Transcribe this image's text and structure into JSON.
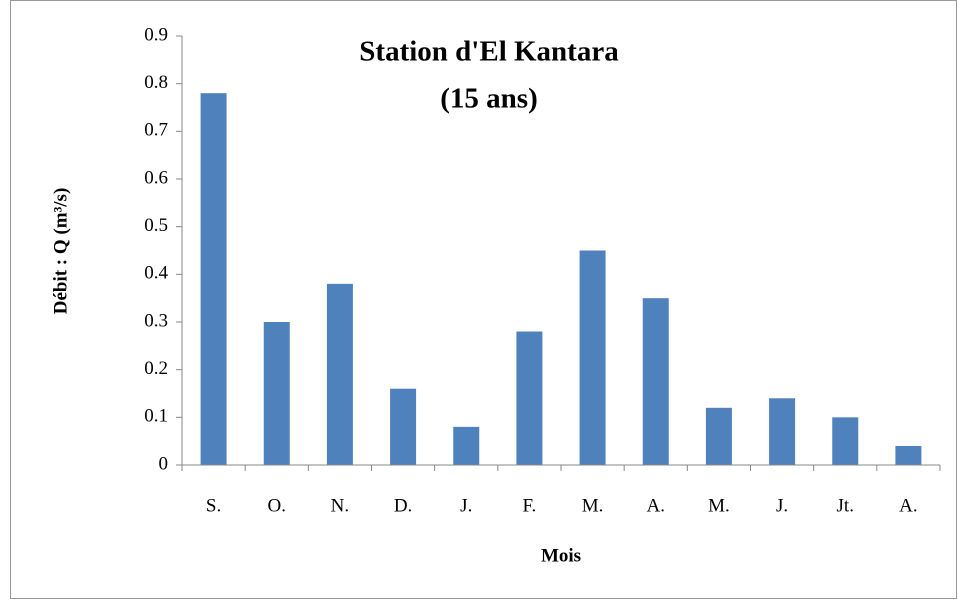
{
  "chart_data": {
    "type": "bar",
    "title": [
      "Station d'El Kantara",
      "(15 ans)"
    ],
    "x_label": "Mois",
    "y_label": "Débit : Q (m³/s)",
    "categories": [
      "S.",
      "O.",
      "N.",
      "D.",
      "J.",
      "F.",
      "M.",
      "A.",
      "M.",
      "J.",
      "Jt.",
      "A."
    ],
    "values": [
      0.78,
      0.3,
      0.38,
      0.16,
      0.08,
      0.28,
      0.45,
      0.35,
      0.12,
      0.14,
      0.1,
      0.04
    ],
    "color": "#4f81bd",
    "ylim": [
      0,
      0.9
    ],
    "yticks": [
      0,
      0.1,
      0.2,
      0.3,
      0.4,
      0.5,
      0.6,
      0.7,
      0.8,
      0.9
    ],
    "grid": false
  }
}
